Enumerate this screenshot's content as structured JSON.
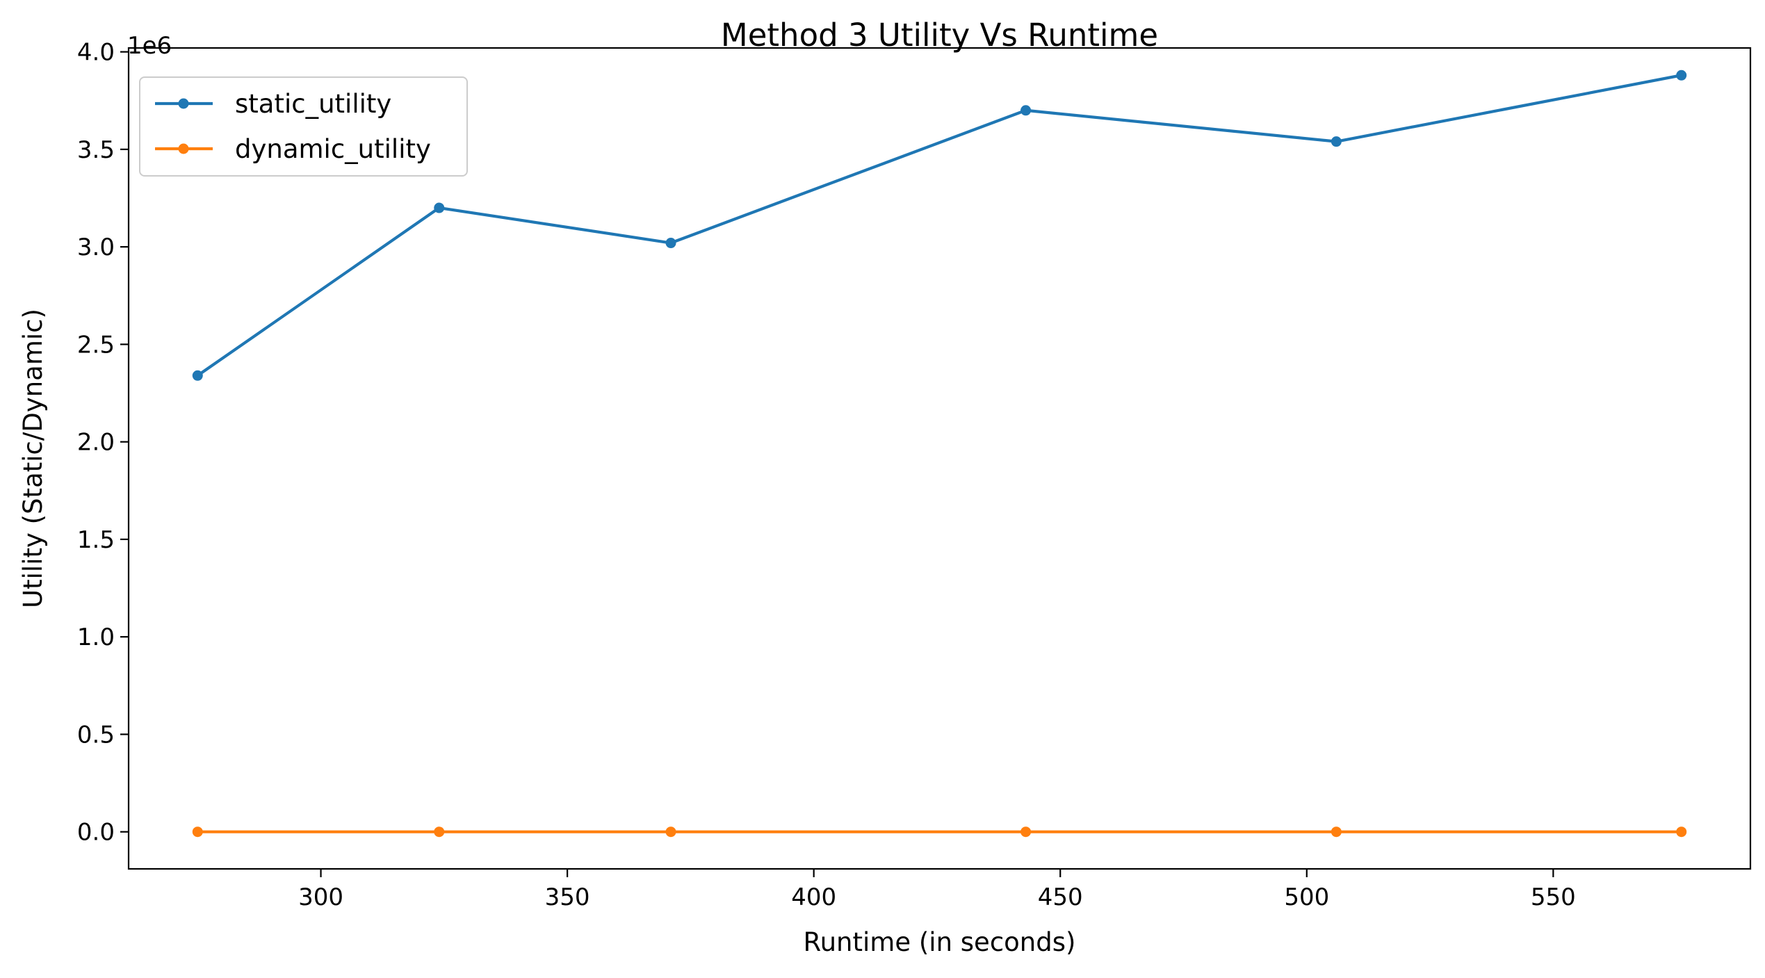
{
  "chart_data": {
    "type": "line",
    "title": "Method 3 Utility Vs Runtime",
    "xlabel": "Runtime (in seconds)",
    "ylabel": "Utility (Static/Dynamic)",
    "y_offset_label": "1e6",
    "y_scale_factor": 1000000,
    "xlim": [
      261,
      590
    ],
    "ylim": [
      -0.19,
      4.02
    ],
    "x_ticks": [
      300,
      350,
      400,
      450,
      500,
      550
    ],
    "x_tick_labels": [
      "300",
      "350",
      "400",
      "450",
      "500",
      "550"
    ],
    "y_ticks": [
      0.0,
      0.5,
      1.0,
      1.5,
      2.0,
      2.5,
      3.0,
      3.5,
      4.0
    ],
    "y_tick_labels": [
      "0.0",
      "0.5",
      "1.0",
      "1.5",
      "2.0",
      "2.5",
      "3.0",
      "3.5",
      "4.0"
    ],
    "grid": false,
    "legend_position": "top-left",
    "x": [
      275,
      324,
      371,
      443,
      506,
      576
    ],
    "series": [
      {
        "name": "static_utility",
        "color": "#1f77b4",
        "marker": "circle",
        "values": [
          2.34,
          3.2,
          3.02,
          3.7,
          3.54,
          3.88
        ]
      },
      {
        "name": "dynamic_utility",
        "color": "#ff7f0e",
        "marker": "circle",
        "values": [
          0.0,
          0.0,
          0.0,
          0.0,
          0.0,
          0.0
        ]
      }
    ]
  }
}
